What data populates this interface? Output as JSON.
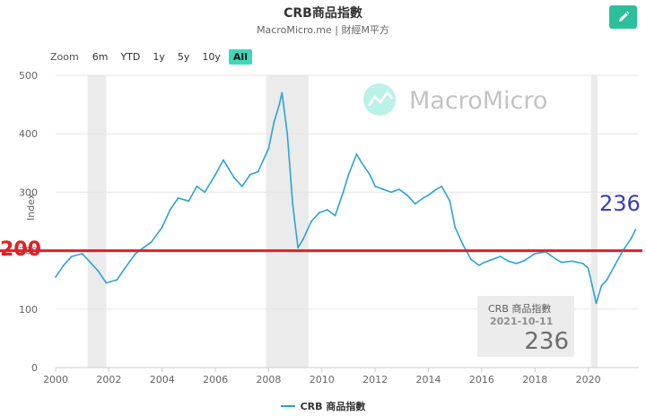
{
  "header": {
    "title": "CRB商品指數",
    "subtitle": "MacroMicro.me | 財經M平方"
  },
  "toolbar": {
    "zoom_label": "Zoom",
    "zoom_options": [
      "6m",
      "YTD",
      "1y",
      "5y",
      "10y",
      "All"
    ],
    "active_zoom": "All",
    "edit_icon": "pencil-icon"
  },
  "watermark": {
    "text": "MacroMicro",
    "icon": "chart-logo-icon"
  },
  "tooltip": {
    "series": "CRB 商品指數",
    "date": "2021-10-11",
    "value": "236"
  },
  "annotations": {
    "latest_value": "236",
    "reference_label": "200"
  },
  "legend": {
    "series_label": "CRB 商品指數"
  },
  "colors": {
    "series": "#2ba3d6",
    "reference_line": "#e41e26",
    "recession_band": "#ebebeb",
    "accent": "#2bbf9a",
    "latest_value": "#3a3db8"
  },
  "chart_data": {
    "type": "line",
    "title": "CRB商品指數",
    "ylabel": "Index",
    "xlabel": "",
    "xlim": [
      2000,
      2021.9
    ],
    "ylim": [
      0,
      500
    ],
    "x_ticks": [
      2000,
      2002,
      2004,
      2006,
      2008,
      2010,
      2012,
      2014,
      2016,
      2018,
      2020
    ],
    "y_ticks": [
      0,
      100,
      200,
      300,
      400,
      500
    ],
    "reference_line": 200,
    "recession_bands": [
      [
        2001.2,
        2001.9
      ],
      [
        2007.9,
        2009.5
      ],
      [
        2020.1,
        2020.35
      ]
    ],
    "grid": "horizontal",
    "legend_position": "bottom-center",
    "series": [
      {
        "name": "CRB 商品指數",
        "x": [
          2000.0,
          2000.3,
          2000.6,
          2001.0,
          2001.3,
          2001.6,
          2001.9,
          2002.3,
          2002.6,
          2003.0,
          2003.3,
          2003.6,
          2004.0,
          2004.3,
          2004.6,
          2005.0,
          2005.3,
          2005.6,
          2006.0,
          2006.3,
          2006.5,
          2006.7,
          2007.0,
          2007.3,
          2007.6,
          2007.8,
          2008.0,
          2008.2,
          2008.4,
          2008.5,
          2008.7,
          2008.9,
          2009.1,
          2009.3,
          2009.6,
          2009.9,
          2010.2,
          2010.5,
          2010.8,
          2011.0,
          2011.3,
          2011.5,
          2011.8,
          2012.0,
          2012.3,
          2012.6,
          2012.9,
          2013.2,
          2013.5,
          2013.8,
          2014.0,
          2014.3,
          2014.5,
          2014.8,
          2015.0,
          2015.3,
          2015.6,
          2015.9,
          2016.1,
          2016.4,
          2016.7,
          2017.0,
          2017.3,
          2017.6,
          2018.0,
          2018.4,
          2018.8,
          2019.0,
          2019.4,
          2019.8,
          2020.0,
          2020.15,
          2020.3,
          2020.5,
          2020.7,
          2021.0,
          2021.3,
          2021.6,
          2021.78
        ],
        "values": [
          155,
          175,
          190,
          195,
          180,
          165,
          145,
          150,
          170,
          195,
          205,
          215,
          240,
          270,
          290,
          285,
          310,
          300,
          330,
          355,
          340,
          325,
          310,
          330,
          335,
          355,
          375,
          420,
          450,
          470,
          400,
          280,
          205,
          220,
          250,
          265,
          270,
          260,
          300,
          330,
          365,
          350,
          330,
          310,
          305,
          300,
          305,
          295,
          280,
          290,
          295,
          305,
          310,
          285,
          240,
          210,
          185,
          175,
          180,
          185,
          190,
          182,
          178,
          183,
          195,
          198,
          185,
          180,
          182,
          178,
          170,
          140,
          110,
          140,
          150,
          175,
          200,
          220,
          236
        ]
      }
    ]
  }
}
